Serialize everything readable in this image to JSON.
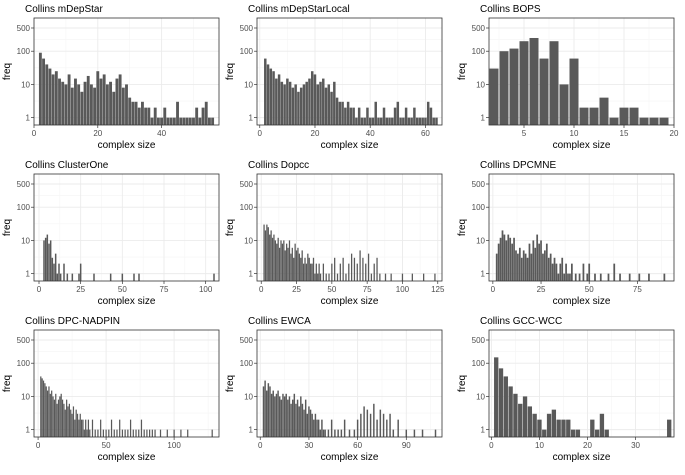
{
  "figure": {
    "y_ticks": [
      "1",
      "10",
      "100",
      "500"
    ],
    "colors": {
      "bar": "#595959",
      "grid_major": "#ebebeb",
      "grid_minor": "#f5f5f5",
      "border": "#333333",
      "text": "#4d4d4d"
    }
  },
  "chart_data": [
    {
      "type": "bar",
      "title": "Collins mDepStar",
      "xlabel": "complex size",
      "ylabel": "freq",
      "xlim": [
        0,
        58
      ],
      "xticks": [
        0,
        20,
        40
      ],
      "yscale": "log",
      "ylim": [
        0.6,
        1000
      ],
      "yticks": [
        1,
        10,
        100,
        500
      ],
      "x": [
        2,
        3,
        4,
        5,
        6,
        7,
        8,
        9,
        10,
        11,
        12,
        13,
        14,
        15,
        16,
        17,
        18,
        19,
        20,
        21,
        22,
        23,
        24,
        25,
        26,
        27,
        28,
        29,
        30,
        31,
        32,
        33,
        34,
        35,
        36,
        37,
        38,
        39,
        40,
        41,
        42,
        43,
        44,
        45,
        46,
        47,
        48,
        49,
        50,
        51,
        52,
        53,
        54,
        55,
        56
      ],
      "values": [
        90,
        60,
        40,
        30,
        20,
        25,
        15,
        12,
        10,
        20,
        8,
        15,
        10,
        6,
        12,
        18,
        10,
        8,
        25,
        15,
        20,
        10,
        12,
        6,
        15,
        20,
        8,
        10,
        4,
        3,
        3,
        2,
        3,
        2,
        2,
        1,
        2,
        1,
        1,
        2,
        1,
        1,
        1,
        3,
        1,
        1,
        1,
        1,
        1,
        2,
        1,
        2,
        3,
        1,
        1
      ]
    },
    {
      "type": "bar",
      "title": "Collins mDepStarLocal",
      "xlabel": "complex size",
      "ylabel": "freq",
      "xlim": [
        -1,
        66
      ],
      "xticks": [
        0,
        20,
        40,
        60
      ],
      "yscale": "log",
      "ylim": [
        0.6,
        1000
      ],
      "yticks": [
        1,
        10,
        100,
        500
      ],
      "x": [
        2,
        3,
        4,
        5,
        6,
        7,
        8,
        9,
        10,
        11,
        12,
        13,
        14,
        15,
        16,
        17,
        18,
        19,
        20,
        21,
        22,
        23,
        24,
        25,
        26,
        27,
        28,
        29,
        30,
        31,
        32,
        33,
        34,
        35,
        36,
        37,
        38,
        39,
        40,
        41,
        42,
        43,
        44,
        45,
        46,
        47,
        48,
        49,
        50,
        51,
        52,
        53,
        54,
        55,
        56,
        57,
        58,
        59,
        60,
        61,
        62,
        63,
        64
      ],
      "values": [
        60,
        40,
        30,
        25,
        15,
        20,
        12,
        10,
        15,
        12,
        8,
        10,
        6,
        8,
        10,
        12,
        15,
        25,
        20,
        10,
        12,
        15,
        8,
        10,
        6,
        12,
        4,
        3,
        3,
        2,
        3,
        2,
        2,
        1,
        2,
        1,
        1,
        2,
        1,
        1,
        3,
        1,
        1,
        2,
        1,
        1,
        1,
        2,
        3,
        1,
        1,
        2,
        1,
        1,
        2,
        1,
        1,
        1,
        1,
        3,
        2,
        1,
        1
      ]
    },
    {
      "type": "bar",
      "title": "Collins BOPS",
      "xlabel": "complex size",
      "ylabel": "freq",
      "xlim": [
        1.5,
        20
      ],
      "xticks": [
        5,
        10,
        15,
        20
      ],
      "yscale": "log",
      "ylim": [
        0.6,
        1000
      ],
      "yticks": [
        1,
        10,
        100,
        500
      ],
      "x": [
        2,
        3,
        4,
        5,
        6,
        7,
        8,
        9,
        10,
        11,
        12,
        13,
        14,
        15,
        16,
        17,
        18,
        19
      ],
      "values": [
        30,
        100,
        120,
        200,
        250,
        60,
        200,
        10,
        60,
        2,
        2,
        4,
        1,
        2,
        2,
        1,
        1,
        1
      ]
    },
    {
      "type": "bar",
      "title": "Collins ClusterOne",
      "xlabel": "complex size",
      "ylabel": "freq",
      "xlim": [
        -3,
        108
      ],
      "xticks": [
        0,
        25,
        50,
        75,
        100
      ],
      "yscale": "log",
      "ylim": [
        0.6,
        1000
      ],
      "yticks": [
        1,
        10,
        100,
        500
      ],
      "x": [
        3,
        4,
        5,
        6,
        7,
        8,
        9,
        10,
        11,
        12,
        13,
        15,
        17,
        20,
        24,
        25,
        33,
        43,
        50,
        57,
        60,
        105
      ],
      "values": [
        10,
        12,
        15,
        8,
        10,
        3,
        2,
        4,
        1,
        2,
        1,
        2,
        1,
        1,
        1,
        2,
        1,
        1,
        1,
        1,
        1,
        1
      ]
    },
    {
      "type": "bar",
      "title": "Collins Dopcc",
      "xlabel": "complex size",
      "ylabel": "freq",
      "xlim": [
        -3,
        128
      ],
      "xticks": [
        0,
        25,
        50,
        75,
        100,
        125
      ],
      "yscale": "log",
      "ylim": [
        0.6,
        1000
      ],
      "yticks": [
        1,
        10,
        100,
        500
      ],
      "x": [
        2,
        3,
        4,
        5,
        6,
        7,
        8,
        9,
        10,
        11,
        12,
        13,
        14,
        15,
        16,
        17,
        18,
        19,
        20,
        21,
        22,
        23,
        24,
        25,
        26,
        27,
        28,
        29,
        30,
        31,
        32,
        33,
        34,
        35,
        36,
        37,
        38,
        39,
        40,
        41,
        42,
        44,
        46,
        48,
        50,
        52,
        54,
        56,
        58,
        60,
        62,
        64,
        66,
        68,
        70,
        72,
        74,
        76,
        78,
        80,
        82,
        84,
        88,
        92,
        100,
        107,
        115,
        123
      ],
      "values": [
        30,
        20,
        30,
        25,
        15,
        20,
        12,
        15,
        10,
        8,
        12,
        6,
        10,
        8,
        10,
        5,
        8,
        6,
        10,
        4,
        6,
        3,
        8,
        5,
        6,
        4,
        3,
        5,
        2,
        3,
        2,
        4,
        3,
        2,
        2,
        3,
        1,
        2,
        1,
        2,
        1,
        2,
        1,
        1,
        2,
        3,
        1,
        2,
        3,
        1,
        2,
        4,
        3,
        2,
        5,
        3,
        2,
        4,
        1,
        2,
        3,
        1,
        1,
        1,
        1,
        1,
        1,
        1
      ]
    },
    {
      "type": "bar",
      "title": "Collins DPCMNE",
      "xlabel": "complex size",
      "ylabel": "freq",
      "xlim": [
        -2,
        94
      ],
      "xticks": [
        0,
        25,
        50,
        75
      ],
      "yscale": "log",
      "ylim": [
        0.6,
        1000
      ],
      "yticks": [
        1,
        10,
        100,
        500
      ],
      "x": [
        2,
        3,
        4,
        5,
        6,
        7,
        8,
        9,
        10,
        11,
        12,
        13,
        14,
        15,
        16,
        17,
        18,
        19,
        20,
        21,
        22,
        23,
        24,
        25,
        26,
        27,
        28,
        29,
        30,
        31,
        32,
        33,
        34,
        35,
        36,
        37,
        38,
        39,
        40,
        41,
        43,
        45,
        47,
        49,
        50,
        53,
        56,
        60,
        63,
        66,
        71,
        76,
        81,
        89
      ],
      "values": [
        4,
        8,
        12,
        20,
        15,
        10,
        15,
        12,
        8,
        12,
        5,
        4,
        6,
        3,
        5,
        4,
        3,
        8,
        4,
        10,
        6,
        15,
        8,
        10,
        4,
        5,
        8,
        3,
        4,
        2,
        3,
        2,
        1,
        2,
        3,
        1,
        2,
        1,
        1,
        2,
        1,
        1,
        2,
        1,
        2,
        1,
        1,
        1,
        2,
        1,
        1,
        1,
        1,
        1
      ]
    },
    {
      "type": "bar",
      "title": "Collins DPC-NADPIN",
      "xlabel": "complex size",
      "ylabel": "freq",
      "xlim": [
        -3,
        133
      ],
      "xticks": [
        0,
        50,
        100
      ],
      "yscale": "log",
      "ylim": [
        0.6,
        1000
      ],
      "yticks": [
        1,
        10,
        100,
        500
      ],
      "x": [
        2,
        3,
        4,
        5,
        6,
        7,
        8,
        9,
        10,
        11,
        12,
        13,
        14,
        15,
        16,
        17,
        18,
        19,
        20,
        21,
        22,
        23,
        24,
        25,
        26,
        27,
        28,
        29,
        30,
        31,
        32,
        33,
        34,
        35,
        36,
        37,
        38,
        40,
        42,
        44,
        46,
        48,
        50,
        52,
        54,
        56,
        58,
        60,
        62,
        64,
        66,
        68,
        70,
        72,
        74,
        76,
        78,
        80,
        82,
        84,
        86,
        90,
        95,
        100,
        105,
        110,
        128
      ],
      "values": [
        40,
        35,
        30,
        25,
        20,
        15,
        20,
        12,
        15,
        10,
        8,
        12,
        6,
        8,
        10,
        12,
        8,
        6,
        4,
        8,
        5,
        6,
        4,
        3,
        5,
        2,
        4,
        3,
        2,
        3,
        2,
        2,
        1,
        2,
        1,
        2,
        1,
        2,
        1,
        1,
        2,
        1,
        1,
        1,
        2,
        1,
        1,
        2,
        1,
        1,
        1,
        2,
        1,
        1,
        1,
        2,
        1,
        1,
        1,
        1,
        1,
        1,
        1,
        1,
        1,
        1,
        1
      ]
    },
    {
      "type": "bar",
      "title": "Collins EWCA",
      "xlabel": "complex size",
      "ylabel": "freq",
      "xlim": [
        -2,
        112
      ],
      "xticks": [
        0,
        30,
        60,
        90
      ],
      "yscale": "log",
      "ylim": [
        0.6,
        1000
      ],
      "yticks": [
        1,
        10,
        100,
        500
      ],
      "x": [
        2,
        3,
        4,
        5,
        6,
        7,
        8,
        9,
        10,
        11,
        12,
        13,
        14,
        15,
        16,
        17,
        18,
        19,
        20,
        21,
        22,
        23,
        24,
        25,
        26,
        27,
        28,
        29,
        30,
        31,
        32,
        33,
        34,
        35,
        36,
        37,
        38,
        39,
        40,
        42,
        44,
        46,
        48,
        50,
        52,
        55,
        58,
        60,
        62,
        64,
        66,
        68,
        70,
        72,
        74,
        76,
        78,
        80,
        82,
        85,
        90,
        95,
        100,
        108
      ],
      "values": [
        20,
        30,
        15,
        25,
        20,
        12,
        15,
        10,
        12,
        15,
        10,
        8,
        12,
        10,
        12,
        8,
        10,
        6,
        8,
        12,
        6,
        8,
        5,
        10,
        6,
        4,
        8,
        3,
        5,
        4,
        3,
        2,
        3,
        2,
        2,
        1,
        2,
        1,
        1,
        1,
        2,
        1,
        1,
        1,
        2,
        1,
        1,
        2,
        3,
        5,
        4,
        3,
        6,
        2,
        4,
        3,
        2,
        3,
        1,
        2,
        1,
        1,
        1,
        1
      ]
    },
    {
      "type": "bar",
      "title": "Collins GCC-WCC",
      "xlabel": "complex size",
      "ylabel": "freq",
      "xlim": [
        -0.5,
        38
      ],
      "xticks": [
        0,
        10,
        20,
        30
      ],
      "yscale": "log",
      "ylim": [
        0.6,
        1000
      ],
      "yticks": [
        1,
        10,
        100,
        500
      ],
      "x": [
        1,
        2,
        3,
        4,
        5,
        6,
        7,
        8,
        9,
        10,
        11,
        12,
        13,
        14,
        15,
        16,
        17,
        18,
        21,
        22,
        23,
        24,
        37
      ],
      "values": [
        150,
        70,
        40,
        20,
        12,
        6,
        10,
        5,
        3,
        2,
        1,
        3,
        4,
        2,
        2,
        2,
        1,
        1,
        2,
        1,
        3,
        1,
        2
      ]
    }
  ]
}
